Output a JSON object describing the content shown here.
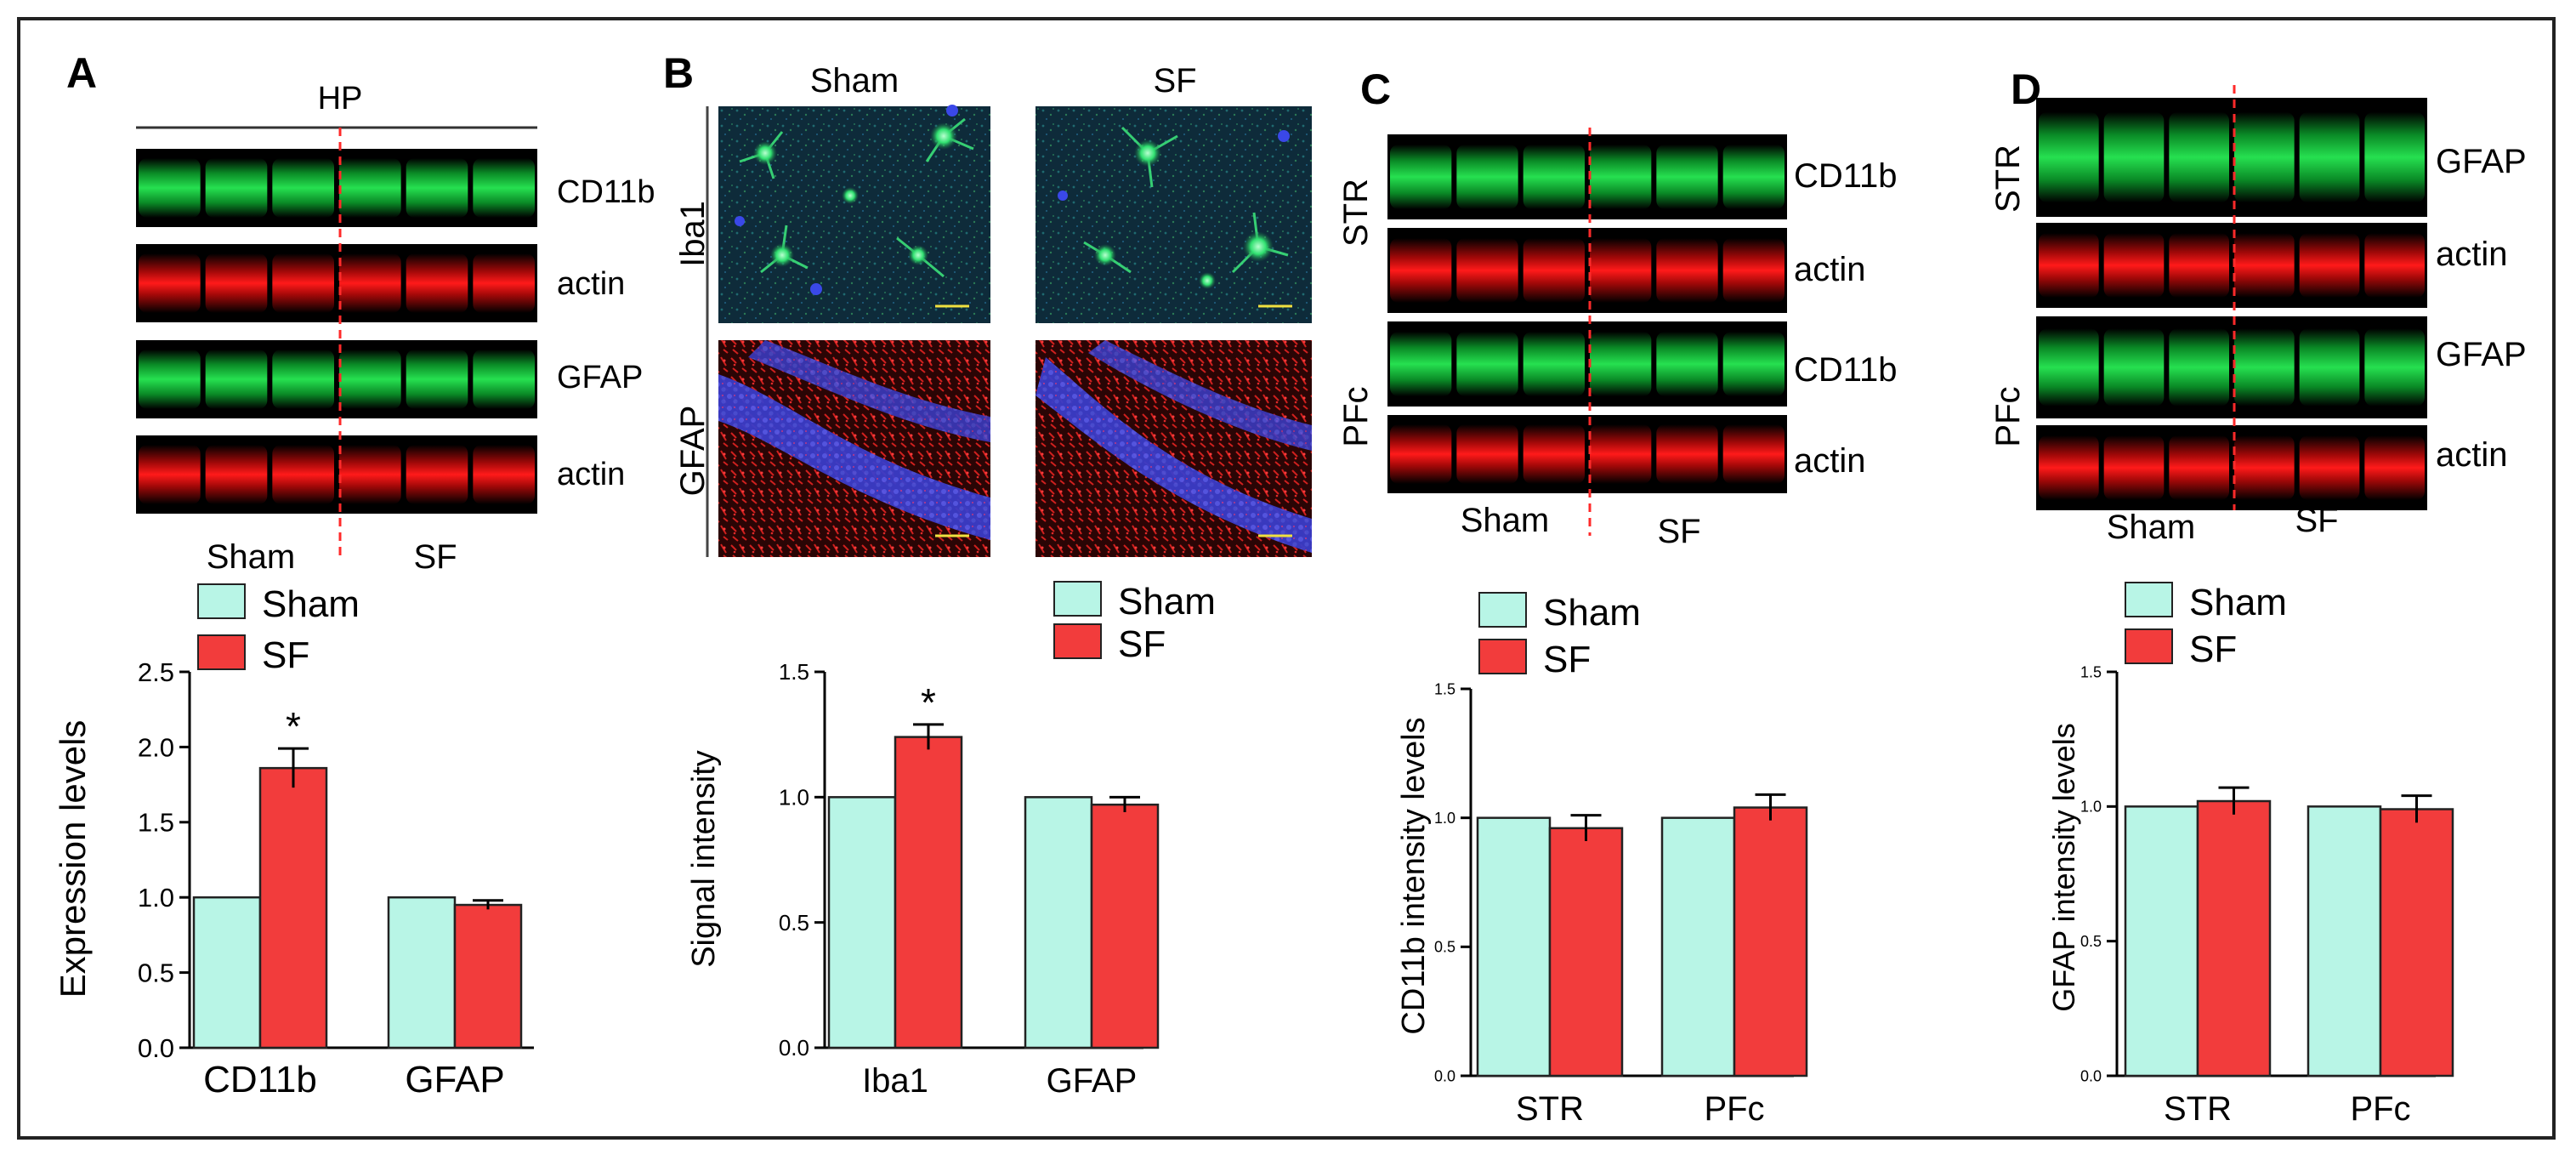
{
  "colors": {
    "sham": "#b8f5e6",
    "sf": "#f23c3c",
    "band_green": "#20d84a",
    "band_red": "#f01010",
    "divider": "#ff2a2a"
  },
  "panels": {
    "A": {
      "letter": "A",
      "region": "HP",
      "blots": [
        "CD11b",
        "actin",
        "GFAP",
        "actin"
      ],
      "groups": [
        "Sham",
        "SF"
      ]
    },
    "B": {
      "letter": "B",
      "columns": [
        "Sham",
        "SF"
      ],
      "rows": [
        "Iba1",
        "GFAP"
      ]
    },
    "C": {
      "letter": "C",
      "regions": [
        "STR",
        "PFc"
      ],
      "blots": [
        "CD11b",
        "actin",
        "CD11b",
        "actin"
      ],
      "groups": [
        "Sham",
        "SF"
      ]
    },
    "D": {
      "letter": "D",
      "regions": [
        "STR",
        "PFc"
      ],
      "blots": [
        "GFAP",
        "actin",
        "GFAP",
        "actin"
      ],
      "groups": [
        "Sham",
        "SF"
      ]
    }
  },
  "chart_data": [
    {
      "type": "bar",
      "panel": "A",
      "categories": [
        "CD11b",
        "GFAP"
      ],
      "series": [
        {
          "name": "Sham",
          "values": [
            1.0,
            1.0
          ],
          "errors": [
            0,
            0
          ]
        },
        {
          "name": "SF",
          "values": [
            1.86,
            0.95
          ],
          "errors": [
            0.13,
            0.03
          ]
        }
      ],
      "ylabel": "Expression levels",
      "ylim": [
        0,
        2.5
      ],
      "yticks": [
        "0.0",
        "0.5",
        "1.0",
        "1.5",
        "2.0",
        "2.5"
      ],
      "significance": [
        "*",
        ""
      ],
      "legend": "top"
    },
    {
      "type": "bar",
      "panel": "B",
      "categories": [
        "Iba1",
        "GFAP"
      ],
      "series": [
        {
          "name": "Sham",
          "values": [
            1.0,
            1.0
          ],
          "errors": [
            0,
            0
          ]
        },
        {
          "name": "SF",
          "values": [
            1.24,
            0.97
          ],
          "errors": [
            0.05,
            0.03
          ]
        }
      ],
      "ylabel": "Signal intensity",
      "ylim": [
        0,
        1.5
      ],
      "yticks": [
        "0.0",
        "0.5",
        "1.0",
        "1.5"
      ],
      "significance": [
        "*",
        ""
      ],
      "legend": "top-right"
    },
    {
      "type": "bar",
      "panel": "C",
      "categories": [
        "STR",
        "PFc"
      ],
      "series": [
        {
          "name": "Sham",
          "values": [
            1.0,
            1.0
          ],
          "errors": [
            0,
            0
          ]
        },
        {
          "name": "SF",
          "values": [
            0.96,
            1.04
          ],
          "errors": [
            0.05,
            0.05
          ]
        }
      ],
      "ylabel": "CD11b intensity levels",
      "ylim": [
        0,
        1.5
      ],
      "yticks": [
        "0.0",
        "0.5",
        "1.0",
        "1.5"
      ],
      "significance": [
        "",
        ""
      ],
      "legend": "top"
    },
    {
      "type": "bar",
      "panel": "D",
      "categories": [
        "STR",
        "PFc"
      ],
      "series": [
        {
          "name": "Sham",
          "values": [
            1.0,
            1.0
          ],
          "errors": [
            0,
            0
          ]
        },
        {
          "name": "SF",
          "values": [
            1.02,
            0.99
          ],
          "errors": [
            0.05,
            0.05
          ]
        }
      ],
      "ylabel": "GFAP intensity levels",
      "ylim": [
        0,
        1.5
      ],
      "yticks": [
        "0.0",
        "0.5",
        "1.0",
        "1.5"
      ],
      "significance": [
        "",
        ""
      ],
      "legend": "top"
    }
  ]
}
